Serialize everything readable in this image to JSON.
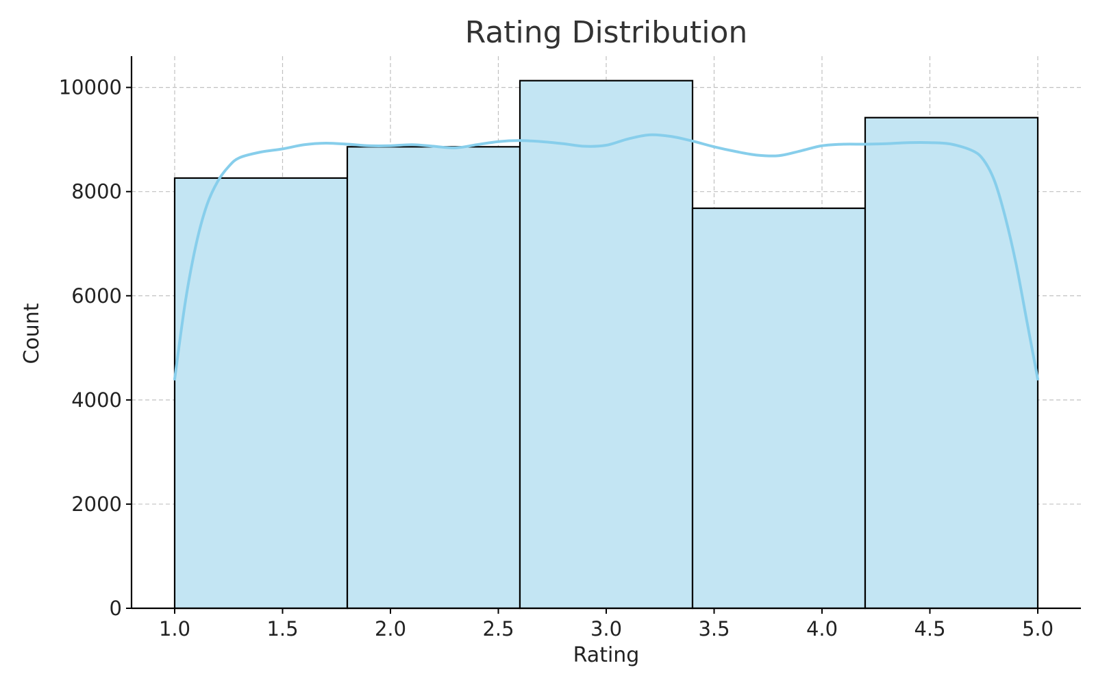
{
  "chart_data": {
    "type": "bar",
    "title": "Rating Distribution",
    "xlabel": "Rating",
    "ylabel": "Count",
    "bins": [
      {
        "x0": 1.0,
        "x1": 1.8,
        "count": 8260
      },
      {
        "x0": 1.8,
        "x1": 2.6,
        "count": 8860
      },
      {
        "x0": 2.6,
        "x1": 3.4,
        "count": 10130
      },
      {
        "x0": 3.4,
        "x1": 4.2,
        "count": 7680
      },
      {
        "x0": 4.2,
        "x1": 5.0,
        "count": 9420
      }
    ],
    "kde": {
      "x": [
        1.0,
        1.05,
        1.1,
        1.15,
        1.2,
        1.25,
        1.3,
        1.4,
        1.5,
        1.6,
        1.7,
        1.8,
        1.9,
        2.0,
        2.1,
        2.2,
        2.3,
        2.4,
        2.5,
        2.6,
        2.7,
        2.8,
        2.9,
        3.0,
        3.1,
        3.2,
        3.3,
        3.4,
        3.5,
        3.6,
        3.7,
        3.8,
        3.9,
        4.0,
        4.1,
        4.2,
        4.3,
        4.4,
        4.5,
        4.6,
        4.7,
        4.75,
        4.8,
        4.85,
        4.9,
        4.95,
        5.0
      ],
      "y": [
        4400,
        5900,
        7000,
        7750,
        8200,
        8480,
        8650,
        8760,
        8820,
        8900,
        8930,
        8910,
        8880,
        8880,
        8900,
        8870,
        8840,
        8900,
        8960,
        8980,
        8960,
        8920,
        8870,
        8890,
        9010,
        9090,
        9060,
        8970,
        8860,
        8770,
        8700,
        8690,
        8780,
        8880,
        8910,
        8910,
        8920,
        8940,
        8940,
        8910,
        8780,
        8600,
        8200,
        7500,
        6600,
        5500,
        4400
      ]
    },
    "xlim": [
      0.8,
      5.2
    ],
    "ylim": [
      0,
      10600
    ],
    "xticks": [
      "1.0",
      "1.5",
      "2.0",
      "2.5",
      "3.0",
      "3.5",
      "4.0",
      "4.5",
      "5.0"
    ],
    "yticks": [
      "0",
      "2000",
      "4000",
      "6000",
      "8000",
      "10000"
    ],
    "grid": true,
    "colors": {
      "bar_fill": "#c3e5f3",
      "bar_edge": "#000000",
      "kde_line": "#87ceeb",
      "grid": "#c0c0c0"
    }
  }
}
